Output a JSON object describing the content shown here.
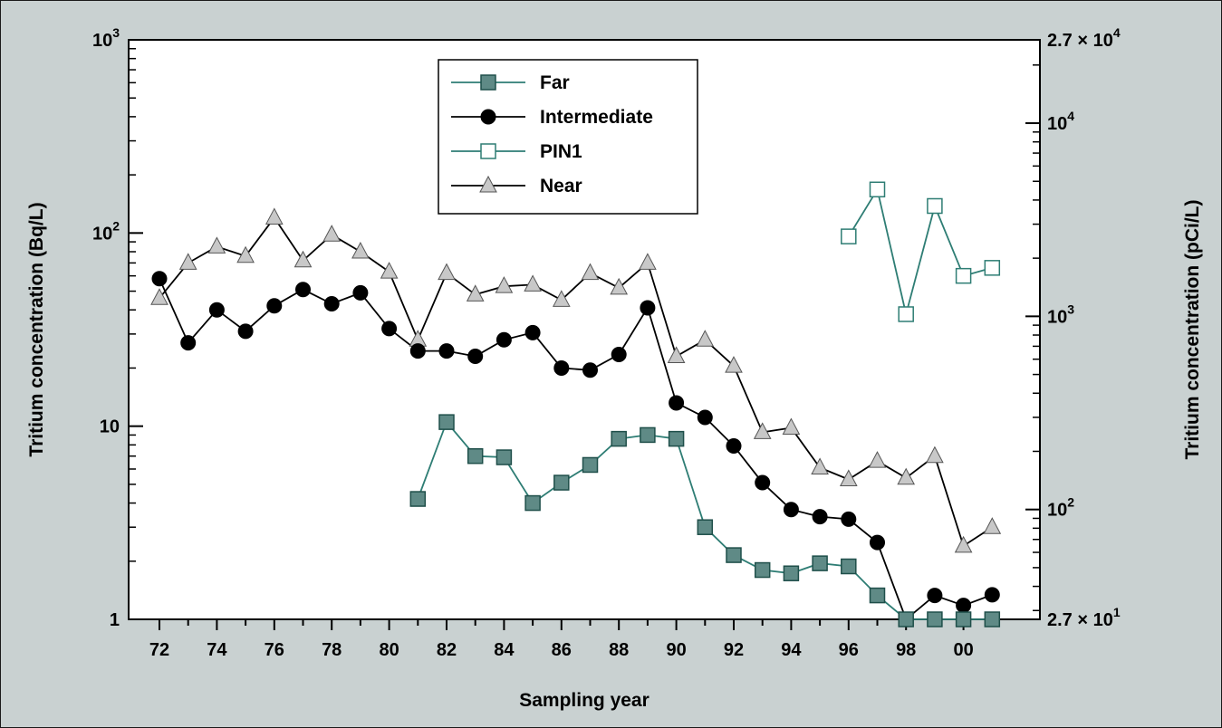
{
  "chart_data": {
    "type": "line",
    "xlabel": "Sampling year",
    "ylabel_left": "Tritium concentration (Bq/L)",
    "ylabel_right": "Tritium concentration (pCi/L)",
    "x_tick_labels": [
      "72",
      "74",
      "76",
      "78",
      "80",
      "82",
      "84",
      "86",
      "88",
      "90",
      "92",
      "94",
      "96",
      "98",
      "00"
    ],
    "left_ticks": [
      {
        "value": 1,
        "base": "1",
        "exp": ""
      },
      {
        "value": 10,
        "base": "10",
        "exp": ""
      },
      {
        "value": 100,
        "base": "10",
        "exp": "2"
      },
      {
        "value": 1000,
        "base": "10",
        "exp": "3"
      }
    ],
    "right_ticks": [
      {
        "value_pci": 27,
        "base": "2.7 × 10",
        "exp": "1"
      },
      {
        "value_pci": 100,
        "base": "10",
        "exp": "2"
      },
      {
        "value_pci": 1000,
        "base": "10",
        "exp": "3"
      },
      {
        "value_pci": 10000,
        "base": "10",
        "exp": "4"
      },
      {
        "value_pci": 27000,
        "base": "2.7 × 10",
        "exp": "4"
      }
    ],
    "y_scale": "log",
    "ylim": [
      1,
      1000
    ],
    "xlim": [
      1971,
      2002
    ],
    "grid": false,
    "legend_position": "top-center",
    "series": [
      {
        "name": "Far",
        "marker": "square-filled",
        "color": "#2e7d74",
        "fill": "#5f8a86",
        "x": [
          1981,
          1982,
          1983,
          1984,
          1985,
          1986,
          1987,
          1988,
          1989,
          1990,
          1991,
          1992,
          1993,
          1994,
          1995,
          1996,
          1997,
          1998,
          1999,
          2000,
          2001
        ],
        "y": [
          4.2,
          10.5,
          7.0,
          6.9,
          4.0,
          5.1,
          6.3,
          8.6,
          9.0,
          8.6,
          3.0,
          2.15,
          1.8,
          1.73,
          1.95,
          1.88,
          1.33,
          1.0,
          1.0,
          1.0,
          1.0
        ]
      },
      {
        "name": "Intermediate",
        "marker": "circle-filled",
        "color": "#000000",
        "fill": "#000000",
        "x": [
          1972,
          1973,
          1974,
          1975,
          1976,
          1977,
          1978,
          1979,
          1980,
          1981,
          1982,
          1983,
          1984,
          1985,
          1986,
          1987,
          1988,
          1989,
          1990,
          1991,
          1992,
          1993,
          1994,
          1995,
          1996,
          1997,
          1998,
          1999,
          2000,
          2001
        ],
        "y": [
          58,
          27,
          40,
          31,
          42,
          51,
          43,
          49,
          32,
          24.5,
          24.5,
          23,
          28,
          30.5,
          20,
          19.5,
          23.5,
          41,
          13.2,
          11.1,
          7.9,
          5.1,
          3.7,
          3.4,
          3.3,
          2.5,
          1.0,
          1.33,
          1.18,
          1.34
        ]
      },
      {
        "name": "PIN1",
        "marker": "square-open",
        "color": "#2e7d74",
        "fill": "#ffffff",
        "x": [
          1996,
          1997,
          1998,
          1999,
          2000,
          2001
        ],
        "y": [
          96,
          168,
          38,
          138,
          60,
          66
        ]
      },
      {
        "name": "Near",
        "marker": "triangle-filled",
        "color": "#000000",
        "fill": "#c8c8c8",
        "x": [
          1972,
          1973,
          1974,
          1975,
          1976,
          1977,
          1978,
          1979,
          1980,
          1981,
          1982,
          1983,
          1984,
          1985,
          1986,
          1987,
          1988,
          1989,
          1990,
          1991,
          1992,
          1993,
          1994,
          1995,
          1996,
          1997,
          1998,
          1999,
          2000,
          2001
        ],
        "y": [
          46,
          70,
          85,
          76,
          120,
          72,
          98,
          80,
          63,
          28,
          62,
          48,
          53,
          54,
          45,
          62,
          52,
          70,
          23,
          28,
          20.5,
          9.3,
          9.8,
          6.1,
          5.3,
          6.6,
          5.4,
          7.0,
          2.4,
          3.0
        ]
      }
    ]
  }
}
